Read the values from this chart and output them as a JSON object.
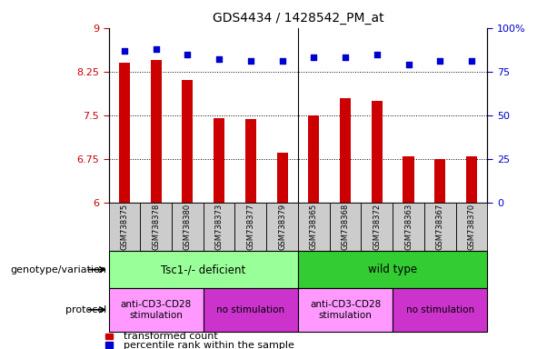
{
  "title": "GDS4434 / 1428542_PM_at",
  "samples": [
    "GSM738375",
    "GSM738378",
    "GSM738380",
    "GSM738373",
    "GSM738377",
    "GSM738379",
    "GSM738365",
    "GSM738368",
    "GSM738372",
    "GSM738363",
    "GSM738367",
    "GSM738370"
  ],
  "bar_values": [
    8.4,
    8.45,
    8.1,
    7.45,
    7.43,
    6.85,
    7.5,
    7.8,
    7.75,
    6.8,
    6.75,
    6.8
  ],
  "dot_values": [
    87,
    88,
    85,
    82,
    81,
    81,
    83,
    83,
    85,
    79,
    81,
    81
  ],
  "ylim_left": [
    6,
    9
  ],
  "ylim_right": [
    0,
    100
  ],
  "yticks_left": [
    6,
    6.75,
    7.5,
    8.25,
    9
  ],
  "yticks_right": [
    0,
    25,
    50,
    75,
    100
  ],
  "bar_color": "#cc0000",
  "dot_color": "#0000cc",
  "dot_marker": "s",
  "dot_size": 20,
  "bar_width": 0.35,
  "genotype_groups": [
    {
      "label": "Tsc1-/- deficient",
      "start": 0,
      "end": 6,
      "color": "#99ff99"
    },
    {
      "label": "wild type",
      "start": 6,
      "end": 12,
      "color": "#33cc33"
    }
  ],
  "protocol_groups": [
    {
      "label": "anti-CD3-CD28\nstimulation",
      "start": 0,
      "end": 3,
      "color": "#ff99ff"
    },
    {
      "label": "no stimulation",
      "start": 3,
      "end": 6,
      "color": "#cc33cc"
    },
    {
      "label": "anti-CD3-CD28\nstimulation",
      "start": 6,
      "end": 9,
      "color": "#ff99ff"
    },
    {
      "label": "no stimulation",
      "start": 9,
      "end": 12,
      "color": "#cc33cc"
    }
  ],
  "genotype_label": "genotype/variation",
  "protocol_label": "protocol",
  "legend_bar_label": "transformed count",
  "legend_dot_label": "percentile rank within the sample",
  "bg_color": "#ffffff",
  "sample_box_color": "#cccccc",
  "left_axis_color": "#cc0000",
  "right_axis_color": "#0000cc",
  "grid_color": "#000000",
  "separator_color": "#000000"
}
